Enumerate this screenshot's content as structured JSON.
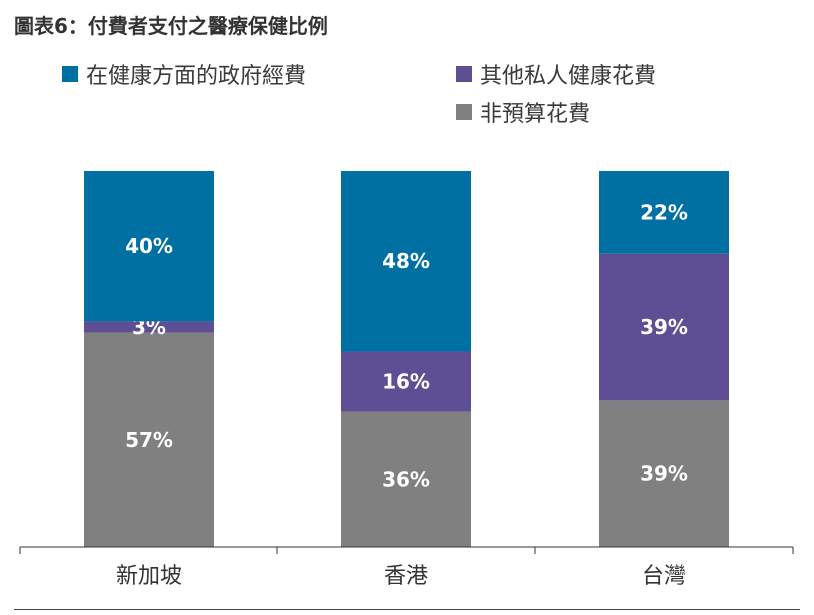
{
  "title": "圖表6：付費者支付之醫療保健比例",
  "colors": {
    "government": "#0070a3",
    "private": "#5e4e94",
    "out_of_pocket": "#808080"
  },
  "chart_data": {
    "type": "bar",
    "stacked": true,
    "categories": [
      "新加坡",
      "香港",
      "台灣"
    ],
    "series": [
      {
        "name": "非預算花費",
        "values": [
          57,
          36,
          39
        ],
        "labels": [
          "57%",
          "36%",
          "39%"
        ]
      },
      {
        "name": "其他私人健康花費",
        "values": [
          3,
          16,
          39
        ],
        "labels": [
          "3%",
          "16%",
          "39%"
        ]
      },
      {
        "name": "在健康方面的政府經費",
        "values": [
          40,
          48,
          22
        ],
        "labels": [
          "40%",
          "48%",
          "22%"
        ]
      }
    ],
    "ylim": [
      0,
      100
    ],
    "grid": false,
    "legend_placement": "top"
  }
}
